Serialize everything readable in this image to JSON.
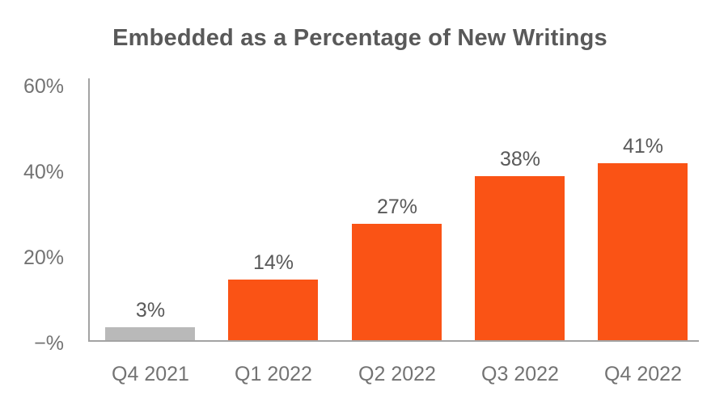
{
  "chart_data": {
    "type": "bar",
    "title": "Embedded as a Percentage of New Writings",
    "categories": [
      "Q4 2021",
      "Q1 2022",
      "Q2 2022",
      "Q3 2022",
      "Q4 2022"
    ],
    "values": [
      3,
      14,
      27,
      38,
      41
    ],
    "value_labels": [
      "3%",
      "14%",
      "27%",
      "38%",
      "41%"
    ],
    "bar_colors": [
      "#b9b9b9",
      "#fa5315",
      "#fa5315",
      "#fa5315",
      "#fa5315"
    ],
    "y_ticks": [
      {
        "label": "60%",
        "value": 60
      },
      {
        "label": "40%",
        "value": 40
      },
      {
        "label": "20%",
        "value": 20
      },
      {
        "label": "−%",
        "value": 0
      }
    ],
    "ylim": [
      0,
      60
    ],
    "xlabel": "",
    "ylabel": "",
    "grid": false,
    "legend": false,
    "colors": {
      "highlight_bar": "#fa5315",
      "muted_bar": "#b9b9b9",
      "axis_line": "#a3a3a3",
      "title_text": "#595959",
      "value_text": "#595959",
      "tick_text": "#737373",
      "background": "#ffffff"
    }
  }
}
